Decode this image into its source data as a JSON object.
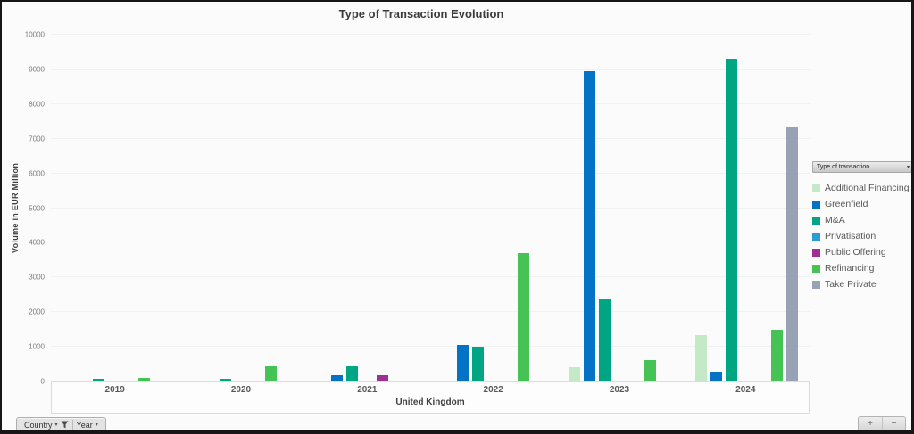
{
  "chart_data": {
    "type": "bar",
    "title": "Type of Transaction Evolution",
    "ylabel": "Volume in EUR Million",
    "xlabel": "United Kingdom",
    "ylim": [
      0,
      10000
    ],
    "yticks": [
      0,
      1000,
      2000,
      3000,
      4000,
      5000,
      6000,
      7000,
      8000,
      9000,
      10000
    ],
    "grid": true,
    "legend_position": "right",
    "categories": [
      "2019",
      "2020",
      "2021",
      "2022",
      "2023",
      "2024"
    ],
    "series": [
      {
        "name": "Additional Financing",
        "color": "#c3e9c6",
        "values": [
          30,
          null,
          null,
          null,
          400,
          1350
        ]
      },
      {
        "name": "Greenfield",
        "color": "#0473c5",
        "values": [
          25,
          null,
          180,
          1050,
          8950,
          280
        ]
      },
      {
        "name": "M&A",
        "color": "#00a583",
        "values": [
          85,
          80,
          440,
          1000,
          2400,
          9300
        ]
      },
      {
        "name": "Privatisation",
        "color": "#2b9cd8",
        "values": [
          null,
          null,
          null,
          null,
          null,
          null
        ]
      },
      {
        "name": "Public Offering",
        "color": "#9d3093",
        "values": [
          null,
          null,
          190,
          null,
          null,
          null
        ]
      },
      {
        "name": "Refinancing",
        "color": "#45c355",
        "values": [
          115,
          440,
          null,
          3700,
          620,
          1500
        ]
      },
      {
        "name": "Take Private",
        "color": "#97a3b4",
        "values": [
          null,
          null,
          null,
          null,
          null,
          7350
        ]
      }
    ]
  },
  "legend": {
    "header": "Type of transaction"
  },
  "controls": {
    "country_label": "Country",
    "year_label": "Year",
    "zoom_in": "+",
    "zoom_out": "−"
  },
  "icons": {
    "caret_down": "▾"
  }
}
